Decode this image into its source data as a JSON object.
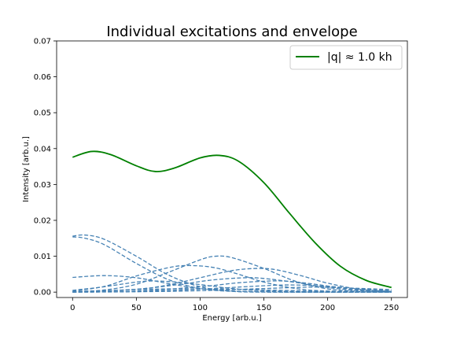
{
  "chart_data": {
    "type": "line",
    "title": "Individual excitations and envelope",
    "xlabel": "Energy [arb.u.]",
    "ylabel": "Intensity [arb.u.]",
    "xlim": [
      -12.5,
      262.5
    ],
    "ylim": [
      -0.0015,
      0.07
    ],
    "xticks": [
      0,
      50,
      100,
      150,
      200,
      250
    ],
    "yticks": [
      0.0,
      0.01,
      0.02,
      0.03,
      0.04,
      0.05,
      0.06,
      0.07
    ],
    "ytick_labels": [
      "0.00",
      "0.01",
      "0.02",
      "0.03",
      "0.04",
      "0.05",
      "0.06",
      "0.07"
    ],
    "grid": false,
    "legend": {
      "placement": "top-right",
      "entries": [
        {
          "label": "|q| ≈ 1.0 kh",
          "color": "#008000",
          "style": "solid"
        }
      ]
    },
    "series": [
      {
        "name": "|q| ≈ 1.0 kh",
        "role": "envelope",
        "color": "#008000",
        "style": "solid",
        "x": [
          0,
          15,
          30,
          50,
          65,
          80,
          100,
          115,
          130,
          150,
          170,
          190,
          210,
          230,
          250
        ],
        "y": [
          0.0376,
          0.0392,
          0.0383,
          0.0352,
          0.0336,
          0.0346,
          0.0374,
          0.0381,
          0.0365,
          0.0305,
          0.022,
          0.0138,
          0.0072,
          0.0033,
          0.0013
        ]
      },
      {
        "role": "excitation",
        "color": "#4682b4",
        "style": "dashed",
        "x": [
          0,
          10,
          25,
          50,
          75,
          100,
          125,
          150,
          200,
          250
        ],
        "y": [
          0.0156,
          0.0159,
          0.0147,
          0.01,
          0.0048,
          0.0015,
          0.0003,
          0.0001,
          0.0,
          0.0
        ]
      },
      {
        "role": "excitation",
        "color": "#4682b4",
        "style": "dashed",
        "x": [
          0,
          10,
          25,
          50,
          75,
          100,
          125,
          150,
          200,
          250
        ],
        "y": [
          0.0154,
          0.015,
          0.0132,
          0.008,
          0.0035,
          0.001,
          0.0002,
          0.0,
          0.0,
          0.0
        ]
      },
      {
        "role": "excitation",
        "color": "#4682b4",
        "style": "dashed",
        "x": [
          0,
          25,
          50,
          75,
          100,
          125,
          150,
          175,
          200,
          250
        ],
        "y": [
          0.0041,
          0.0046,
          0.004,
          0.0024,
          0.001,
          0.0003,
          0.0001,
          0.0,
          0.0,
          0.0
        ]
      },
      {
        "role": "excitation",
        "color": "#4682b4",
        "style": "dashed",
        "x": [
          0,
          25,
          50,
          75,
          90,
          110,
          130,
          150,
          175,
          200,
          250
        ],
        "y": [
          0.0003,
          0.0016,
          0.0045,
          0.0068,
          0.0074,
          0.0069,
          0.005,
          0.0028,
          0.001,
          0.0003,
          0.0
        ]
      },
      {
        "role": "excitation",
        "color": "#4682b4",
        "style": "dashed",
        "x": [
          0,
          25,
          50,
          75,
          100,
          112,
          125,
          150,
          175,
          200,
          225,
          250
        ],
        "y": [
          0.0001,
          0.0006,
          0.0022,
          0.0055,
          0.009,
          0.01,
          0.0096,
          0.0066,
          0.003,
          0.0009,
          0.0002,
          0.0
        ]
      },
      {
        "role": "excitation",
        "color": "#4682b4",
        "style": "dashed",
        "x": [
          0,
          50,
          75,
          100,
          125,
          145,
          160,
          180,
          200,
          225,
          250
        ],
        "y": [
          0.0,
          0.0008,
          0.002,
          0.004,
          0.006,
          0.0066,
          0.0062,
          0.0045,
          0.0025,
          0.0008,
          0.0002
        ]
      },
      {
        "role": "excitation",
        "color": "#4682b4",
        "style": "dashed",
        "x": [
          0,
          25,
          50,
          65,
          85,
          100,
          125,
          150,
          200,
          250
        ],
        "y": [
          0.0005,
          0.0015,
          0.0028,
          0.0031,
          0.0027,
          0.0021,
          0.001,
          0.0004,
          0.0,
          0.0
        ]
      },
      {
        "role": "excitation",
        "color": "#4682b4",
        "style": "dashed",
        "x": [
          0,
          50,
          85,
          110,
          135,
          150,
          175,
          200,
          225,
          250
        ],
        "y": [
          0.0,
          0.0008,
          0.0022,
          0.0034,
          0.004,
          0.0038,
          0.0027,
          0.0013,
          0.0004,
          0.0001
        ]
      },
      {
        "role": "excitation",
        "color": "#4682b4",
        "style": "dashed",
        "x": [
          0,
          50,
          100,
          130,
          155,
          170,
          190,
          210,
          230,
          250
        ],
        "y": [
          0.0,
          0.0003,
          0.0015,
          0.0026,
          0.0031,
          0.003,
          0.0022,
          0.0012,
          0.0005,
          0.0002
        ]
      },
      {
        "role": "excitation",
        "color": "#4682b4",
        "style": "dashed",
        "x": [
          0,
          50,
          100,
          140,
          170,
          200,
          225,
          250
        ],
        "y": [
          0.0,
          0.0002,
          0.0008,
          0.0016,
          0.002,
          0.0016,
          0.0009,
          0.0004
        ]
      },
      {
        "role": "excitation",
        "color": "#4682b4",
        "style": "dashed",
        "x": [
          0,
          50,
          100,
          150,
          190,
          220,
          250
        ],
        "y": [
          0.0,
          0.0001,
          0.0004,
          0.001,
          0.0014,
          0.0011,
          0.0007
        ]
      },
      {
        "role": "excitation",
        "color": "#4682b4",
        "style": "dashed",
        "x": [
          0,
          25,
          50,
          75,
          100,
          125,
          150,
          175,
          200,
          250
        ],
        "y": [
          0.0002,
          0.0004,
          0.0007,
          0.0009,
          0.0009,
          0.0008,
          0.0006,
          0.0004,
          0.0002,
          0.0001
        ]
      }
    ]
  }
}
